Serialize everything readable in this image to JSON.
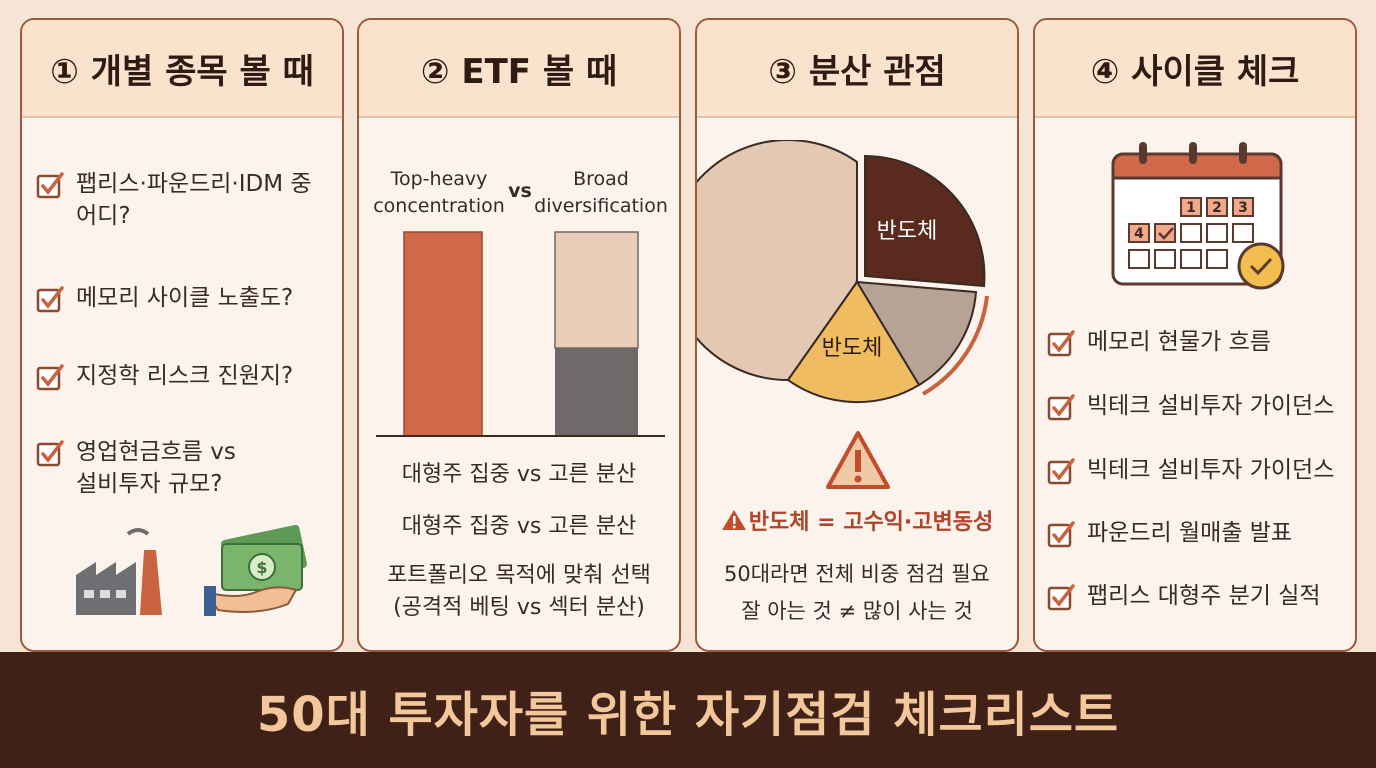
{
  "panels": [
    {
      "title": "① 개별 종목 볼 때",
      "items": [
        "팹리스·파운드리·IDM 중 어디?",
        "메모리 사이클 노출도?",
        "지정학 리스크 진원지?",
        "영업현금흐름 vs 설비투자 규모?"
      ]
    },
    {
      "title": "② ETF 볼 때",
      "left_label": "Top-heavy concentration",
      "vs": "vs",
      "right_label": "Broad diversification",
      "captions": [
        "대형주 집중 vs 고른 분산",
        "대형주 집중 vs 고른 분산",
        "포트폴리오 목적에 맞춰 선택 (공격적 베팅 vs 섹터 분산)"
      ]
    },
    {
      "title": "③ 분산 관점",
      "pie_labels": [
        "반도체",
        "반도체"
      ],
      "warning": "반도체 = 고수익·고변동성",
      "notes": [
        "50대라면 전체 비중 점검 필요",
        "잘 아는 것 ≠ 많이 사는 것"
      ]
    },
    {
      "title": "④ 사이클 체크",
      "calendar": [
        1,
        2,
        3,
        4
      ],
      "items": [
        "메모리 현물가 흐름",
        "빅테크 설비투자 가이던스",
        "빅테크 설비투자 가이던스",
        "파운드리 월매출 발표",
        "팹리스 대형주 분기 실적"
      ]
    }
  ],
  "footer": "50대 투자자를 위한 자기점검 체크리스트"
}
